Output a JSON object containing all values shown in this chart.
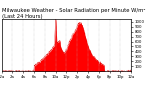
{
  "title": "Milwaukee Weather - Solar Radiation per Minute W/m²",
  "subtitle": "(Last 24 Hours)",
  "bg_color": "#ffffff",
  "plot_bg_color": "#ffffff",
  "fill_color": "#ff0000",
  "line_color": "#dd0000",
  "grid_color": "#bbbbbb",
  "n_points": 1440,
  "ylim": [
    0,
    1050
  ],
  "yticks": [
    100,
    200,
    300,
    400,
    500,
    600,
    700,
    800,
    900,
    1000
  ],
  "title_fontsize": 3.8,
  "tick_fontsize": 2.8,
  "figsize": [
    1.6,
    0.87
  ],
  "dpi": 100
}
